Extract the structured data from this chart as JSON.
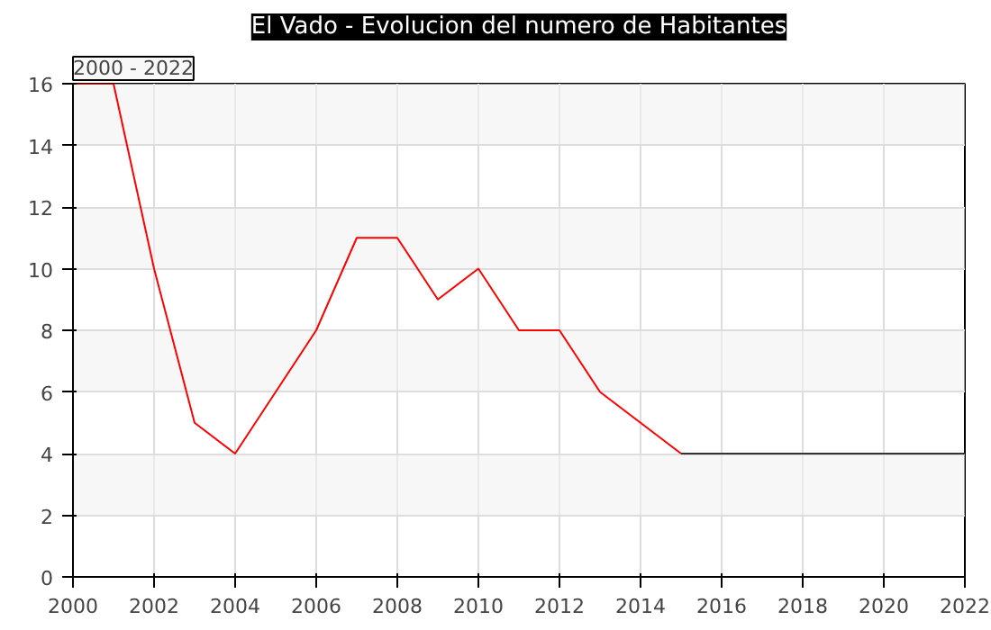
{
  "chart_data": {
    "type": "line",
    "title": "El Vado - Evolucion del numero de Habitantes",
    "annotations": [
      "2000 - 2022"
    ],
    "series": [
      {
        "color": "#ff0000",
        "x": [
          2000,
          2001,
          2002,
          2003,
          2004,
          2005,
          2006,
          2007,
          2008,
          2009,
          2010,
          2011,
          2012,
          2013,
          2014,
          2015
        ],
        "values": [
          16,
          16,
          10,
          5,
          4,
          6,
          8,
          11,
          11,
          9,
          10,
          8,
          8,
          6,
          5,
          4
        ]
      },
      {
        "color": "#333333",
        "x": [
          2015,
          2016,
          2017,
          2018,
          2019,
          2020,
          2021,
          2022
        ],
        "values": [
          4,
          4,
          4,
          4,
          4,
          4,
          4,
          4
        ]
      }
    ],
    "xlim": [
      2000,
      2022
    ],
    "xticks": [
      2000,
      2002,
      2004,
      2006,
      2008,
      2010,
      2012,
      2014,
      2016,
      2018,
      2020,
      2022
    ],
    "ylim": [
      0,
      16
    ],
    "yticks": [
      0,
      2,
      4,
      6,
      8,
      10,
      12,
      14,
      16
    ],
    "grid": true,
    "marker": "none",
    "line_style": "solid"
  }
}
